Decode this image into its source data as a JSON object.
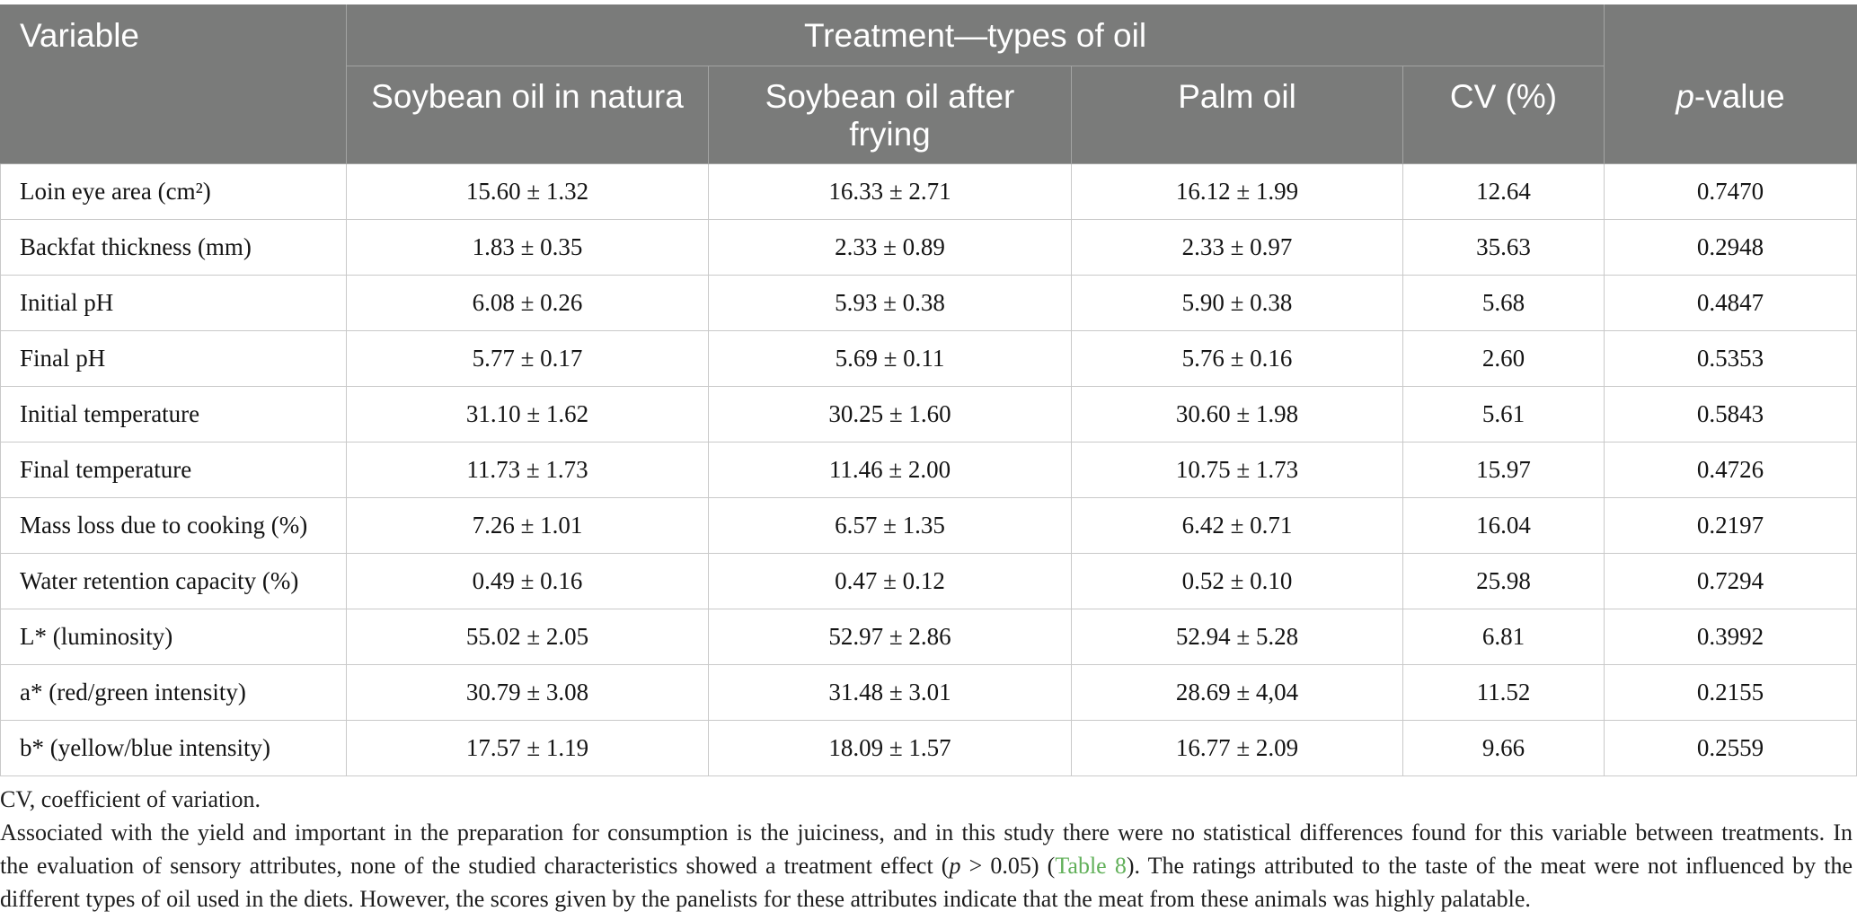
{
  "table": {
    "header": {
      "variable": "Variable",
      "spanner": "Treatment—types of oil",
      "columns": [
        "Soybean oil in natura",
        "Soybean oil after frying",
        "Palm oil",
        "CV (%)"
      ],
      "p_value_symbol": "p",
      "p_value_suffix": "-value"
    },
    "rows": [
      {
        "variable": "Loin eye area (cm²)",
        "values": [
          "15.60 ± 1.32",
          "16.33 ± 2.71",
          "16.12 ± 1.99",
          "12.64",
          "0.7470"
        ]
      },
      {
        "variable": "Backfat thickness (mm)",
        "values": [
          "1.83 ± 0.35",
          "2.33 ± 0.89",
          "2.33 ± 0.97",
          "35.63",
          "0.2948"
        ]
      },
      {
        "variable": "Initial pH",
        "values": [
          "6.08 ± 0.26",
          "5.93 ± 0.38",
          "5.90 ± 0.38",
          "5.68",
          "0.4847"
        ]
      },
      {
        "variable": "Final pH",
        "values": [
          "5.77 ± 0.17",
          "5.69 ± 0.11",
          "5.76 ± 0.16",
          "2.60",
          "0.5353"
        ]
      },
      {
        "variable": "Initial temperature",
        "values": [
          "31.10 ± 1.62",
          "30.25 ± 1.60",
          "30.60 ± 1.98",
          "5.61",
          "0.5843"
        ]
      },
      {
        "variable": "Final temperature",
        "values": [
          "11.73 ± 1.73",
          "11.46 ± 2.00",
          "10.75 ± 1.73",
          "15.97",
          "0.4726"
        ]
      },
      {
        "variable": "Mass loss due to cooking (%)",
        "values": [
          "7.26 ± 1.01",
          "6.57 ± 1.35",
          "6.42 ± 0.71",
          "16.04",
          "0.2197"
        ]
      },
      {
        "variable": "Water retention capacity (%)",
        "values": [
          "0.49 ± 0.16",
          "0.47 ± 0.12",
          "0.52 ± 0.10",
          "25.98",
          "0.7294"
        ]
      },
      {
        "variable": "L* (luminosity)",
        "values": [
          "55.02 ± 2.05",
          "52.97 ± 2.86",
          "52.94 ± 5.28",
          "6.81",
          "0.3992"
        ]
      },
      {
        "variable": "a* (red/green intensity)",
        "values": [
          "30.79 ± 3.08",
          "31.48 ± 3.01",
          "28.69 ± 4,04",
          "11.52",
          "0.2155"
        ]
      },
      {
        "variable": "b* (yellow/blue intensity)",
        "values": [
          "17.57 ± 1.19",
          "18.09 ± 1.57",
          "16.77 ± 2.09",
          "9.66",
          "0.2559"
        ]
      }
    ]
  },
  "footnotes": {
    "abbreviation": "CV, coefficient of variation.",
    "paragraph": {
      "line_1": "Associated with the yield and important in the preparation for consumption is the juiciness, and in this study there were no statistical differences found for this variable between treatments. In",
      "line_2_before_p": "the evaluation of sensory attributes, none of the studied characteristics showed a treatment effect (",
      "line_2_p": "p",
      "line_2_after_p": " > 0.05) (",
      "line_2_link": "Table 8",
      "line_2_end": "). The ratings attributed to the taste of the meat were not influenced by the",
      "line_3": "different types of oil used in the diets. However, the scores given by the panelists for these attributes indicate that the meat from these animals was highly palatable."
    }
  },
  "colors": {
    "header_background": "#7a7b7a",
    "header_text": "#ffffff",
    "header_divider": "#a3a4a3",
    "grid_line": "#c9c9c9",
    "link": "#62b05a"
  }
}
